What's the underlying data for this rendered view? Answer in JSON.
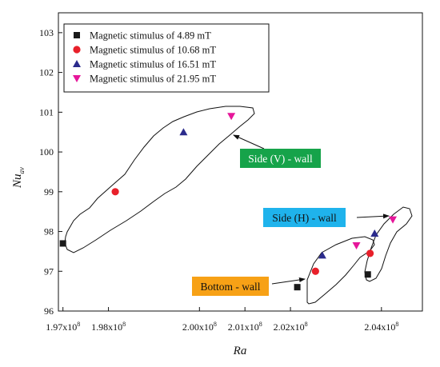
{
  "chart_data": {
    "type": "scatter",
    "xlabel": "Ra",
    "ylabel": "Nu",
    "ylabel_sub": "av",
    "xlim": [
      196900000,
      204900000
    ],
    "ylim": [
      96,
      103.5
    ],
    "x_ticks": [
      {
        "value": 197000000,
        "mantissa": "1.97x10",
        "exp": "8"
      },
      {
        "value": 198000000,
        "mantissa": "1.98x10",
        "exp": "8"
      },
      {
        "value": 200000000,
        "mantissa": "2.00x10",
        "exp": "8"
      },
      {
        "value": 201000000,
        "mantissa": "2.01x10",
        "exp": "8"
      },
      {
        "value": 202000000,
        "mantissa": "2.02x10",
        "exp": "8"
      },
      {
        "value": 204000000,
        "mantissa": "2.04x10",
        "exp": "8"
      }
    ],
    "y_ticks": [
      96,
      97,
      98,
      99,
      100,
      101,
      102,
      103
    ],
    "legend_position": "top-left",
    "series": [
      {
        "name": "Magnetic stimulus of 4.89 mT",
        "marker": "square",
        "color": "#1a1a1a",
        "points": [
          {
            "x": 197000000,
            "y": 97.7
          },
          {
            "x": 202150000,
            "y": 96.6
          },
          {
            "x": 203700000,
            "y": 96.92
          }
        ]
      },
      {
        "name": "Magnetic stimulus of 10.68 mT",
        "marker": "circle",
        "color": "#e8202a",
        "points": [
          {
            "x": 198150000,
            "y": 99.0
          },
          {
            "x": 202550000,
            "y": 97.0
          },
          {
            "x": 203750000,
            "y": 97.45
          }
        ]
      },
      {
        "name": "Magnetic stimulus of 16.51 mT",
        "marker": "triangle-up",
        "color": "#2b2b8c",
        "points": [
          {
            "x": 199650000,
            "y": 100.5
          },
          {
            "x": 202700000,
            "y": 97.4
          },
          {
            "x": 203850000,
            "y": 97.95
          }
        ]
      },
      {
        "name": "Magnetic stimulus of 21.95 mT",
        "marker": "triangle-down",
        "color": "#e6169a",
        "points": [
          {
            "x": 200700000,
            "y": 100.9
          },
          {
            "x": 203450000,
            "y": 97.65
          },
          {
            "x": 204250000,
            "y": 98.3
          }
        ]
      }
    ],
    "annotations": [
      {
        "id": "side-v",
        "text": "Side (V) - wall",
        "bg": "#16a34a",
        "fg": "#ffffff"
      },
      {
        "id": "side-h",
        "text": "Side (H) - wall",
        "bg": "#1fb3ec",
        "fg": "#111111"
      },
      {
        "id": "bottom",
        "text": "Bottom - wall",
        "bg": "#f7a116",
        "fg": "#111111"
      }
    ]
  }
}
